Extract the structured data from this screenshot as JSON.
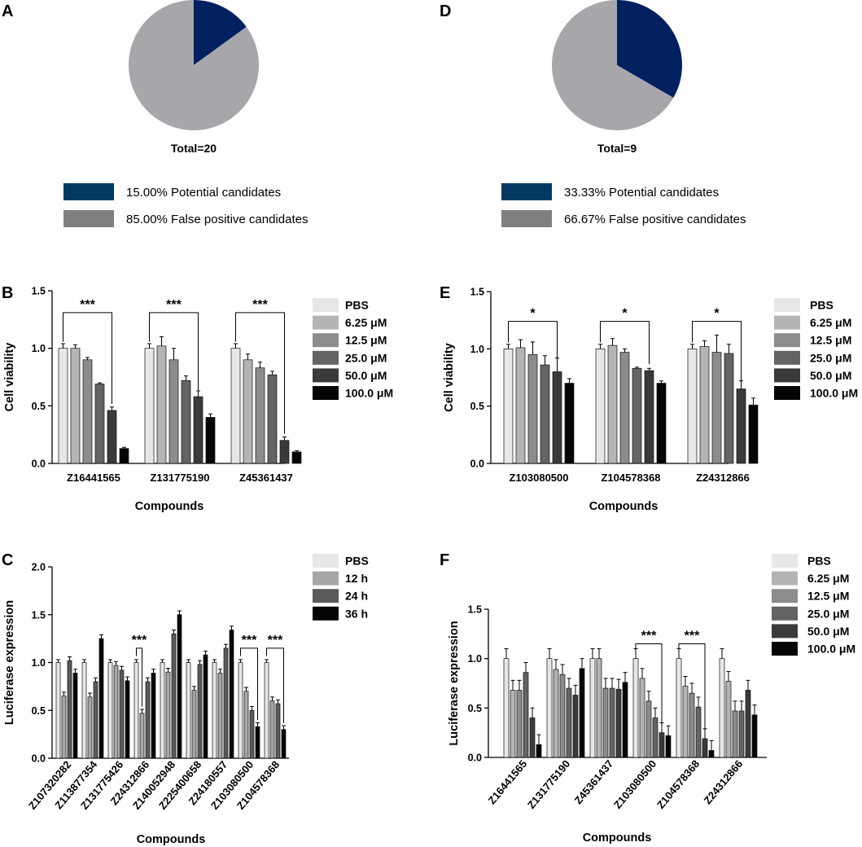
{
  "colors": {
    "potential": "#002060",
    "potential_legend": "#003a63",
    "false_pos": "#a6a6ab",
    "false_pos_legend": "#7f7f7f",
    "bar_colors_6": [
      "#e7e7e7",
      "#b4b4b4",
      "#8c8c8c",
      "#646464",
      "#3a3a3a",
      "#050505"
    ],
    "bar_colors_4": [
      "#e7e7e7",
      "#a6a6a6",
      "#5a5a5a",
      "#050505"
    ]
  },
  "chart_data": [
    {
      "panel": "A",
      "type": "pie",
      "title": "Total=20",
      "slices": [
        {
          "label": "15.00% Potential candidates",
          "value": 15.0
        },
        {
          "label": "85.00% False positive candidates",
          "value": 85.0
        }
      ]
    },
    {
      "panel": "D",
      "type": "pie",
      "title": "Total=9",
      "slices": [
        {
          "label": "33.33% Potential candidates",
          "value": 33.33
        },
        {
          "label": "66.67% False positive candidates",
          "value": 66.67
        }
      ]
    },
    {
      "panel": "B",
      "type": "bar",
      "ylabel": "Cell viability",
      "xlabel": "Compounds",
      "ylim": [
        0,
        1.5
      ],
      "yticks": [
        "0.0",
        "0.5",
        "1.0",
        "1.5"
      ],
      "categories": [
        "Z16441565",
        "Z131775190",
        "Z45361437"
      ],
      "series": [
        {
          "name": "PBS",
          "values": [
            1.0,
            1.0,
            1.0
          ],
          "errors": [
            0.04,
            0.04,
            0.04
          ]
        },
        {
          "name": "6.25 μM",
          "values": [
            1.0,
            1.02,
            0.9
          ],
          "errors": [
            0.03,
            0.08,
            0.05
          ]
        },
        {
          "name": "12.5 μM",
          "values": [
            0.9,
            0.9,
            0.83
          ],
          "errors": [
            0.02,
            0.1,
            0.05
          ]
        },
        {
          "name": "25.0 μM",
          "values": [
            0.69,
            0.72,
            0.77
          ],
          "errors": [
            0.01,
            0.04,
            0.03
          ]
        },
        {
          "name": "50.0 μM",
          "values": [
            0.46,
            0.58,
            0.2
          ],
          "errors": [
            0.03,
            0.05,
            0.03
          ]
        },
        {
          "name": "100.0 μM",
          "values": [
            0.13,
            0.4,
            0.1
          ],
          "errors": [
            0.01,
            0.03,
            0.01
          ]
        }
      ],
      "significance": [
        {
          "group": 0,
          "from": 0,
          "to": 4,
          "y": 1.31,
          "label": "***"
        },
        {
          "group": 1,
          "from": 0,
          "to": 4,
          "y": 1.31,
          "label": "***"
        },
        {
          "group": 2,
          "from": 0,
          "to": 4,
          "y": 1.31,
          "label": "***"
        }
      ]
    },
    {
      "panel": "E",
      "type": "bar",
      "ylabel": "Cell viability",
      "xlabel": "Compounds",
      "ylim": [
        0,
        1.5
      ],
      "yticks": [
        "0.0",
        "0.5",
        "1.0",
        "1.5"
      ],
      "categories": [
        "Z103080500",
        "Z104578368",
        "Z24312866"
      ],
      "series": [
        {
          "name": "PBS",
          "values": [
            1.0,
            1.0,
            1.0
          ],
          "errors": [
            0.04,
            0.04,
            0.04
          ]
        },
        {
          "name": "6.25 μM",
          "values": [
            1.01,
            1.03,
            1.02
          ],
          "errors": [
            0.07,
            0.06,
            0.05
          ]
        },
        {
          "name": "12.5 μM",
          "values": [
            0.95,
            0.97,
            0.97
          ],
          "errors": [
            0.11,
            0.03,
            0.15
          ]
        },
        {
          "name": "25.0 μM",
          "values": [
            0.86,
            0.83,
            0.96
          ],
          "errors": [
            0.08,
            0.01,
            0.08
          ]
        },
        {
          "name": "50.0 μM",
          "values": [
            0.8,
            0.81,
            0.65
          ],
          "errors": [
            0.12,
            0.02,
            0.07
          ]
        },
        {
          "name": "100.0 μM",
          "values": [
            0.7,
            0.7,
            0.51
          ],
          "errors": [
            0.04,
            0.02,
            0.06
          ]
        }
      ],
      "significance": [
        {
          "group": 0,
          "from": 0,
          "to": 4,
          "y": 1.24,
          "label": "*"
        },
        {
          "group": 1,
          "from": 0,
          "to": 4,
          "y": 1.24,
          "label": "*"
        },
        {
          "group": 2,
          "from": 0,
          "to": 4,
          "y": 1.24,
          "label": "*"
        }
      ]
    },
    {
      "panel": "C",
      "type": "bar",
      "ylabel": "Luciferase expression",
      "xlabel": "Compounds",
      "ylim": [
        0,
        2.0
      ],
      "yticks": [
        "0.0",
        "0.5",
        "1.0",
        "1.5",
        "2.0"
      ],
      "categories": [
        "Z107320282",
        "Z113877354",
        "Z131775426",
        "Z24312866",
        "Z140052948",
        "Z225400658",
        "Z24180557",
        "Z103080500",
        "Z104578368"
      ],
      "series": [
        {
          "name": "PBS",
          "values": [
            1.0,
            1.0,
            1.0,
            1.0,
            1.0,
            1.0,
            1.0,
            1.0,
            1.0
          ],
          "errors": [
            0.03,
            0.03,
            0.03,
            0.03,
            0.03,
            0.03,
            0.03,
            0.03,
            0.03
          ]
        },
        {
          "name": "12 h",
          "values": [
            0.65,
            0.64,
            0.97,
            0.47,
            0.9,
            0.71,
            0.89,
            0.7,
            0.6
          ]
        },
        {
          "name": "24 h",
          "values": [
            1.02,
            0.8,
            0.92,
            0.8,
            1.3,
            0.98,
            1.15,
            0.5,
            0.57
          ]
        },
        {
          "name": "36 h",
          "values": [
            0.89,
            1.25,
            0.81,
            0.89,
            1.5,
            1.08,
            1.34,
            0.33,
            0.3
          ]
        }
      ],
      "significance": [
        {
          "group": 3,
          "from": 0,
          "to": 1,
          "y": 1.15,
          "label": "***"
        },
        {
          "group": 7,
          "from": 0,
          "to": 3,
          "y": 1.15,
          "label": "***"
        },
        {
          "group": 8,
          "from": 0,
          "to": 3,
          "y": 1.15,
          "label": "***"
        }
      ]
    },
    {
      "panel": "F",
      "type": "bar",
      "ylabel": "Luciferase expression",
      "xlabel": "Compounds",
      "ylim": [
        0,
        1.5
      ],
      "yticks": [
        "0.0",
        "0.5",
        "1.0",
        "1.5"
      ],
      "categories": [
        "Z16441565",
        "Z131775190",
        "Z45361437",
        "Z103080500",
        "Z104578368",
        "Z24312866"
      ],
      "series": [
        {
          "name": "PBS",
          "values": [
            1.0,
            1.0,
            1.0,
            1.0,
            1.0,
            1.0
          ]
        },
        {
          "name": "6.25 μM",
          "values": [
            0.68,
            0.89,
            1.0,
            0.8,
            0.72,
            0.77
          ]
        },
        {
          "name": "12.5 μM",
          "values": [
            0.68,
            0.84,
            0.7,
            0.57,
            0.65,
            0.47
          ]
        },
        {
          "name": "25.0 μM",
          "values": [
            0.86,
            0.7,
            0.7,
            0.4,
            0.51,
            0.47
          ]
        },
        {
          "name": "50.0 μM",
          "values": [
            0.4,
            0.63,
            0.69,
            0.25,
            0.19,
            0.68
          ]
        },
        {
          "name": "100.0 μM",
          "values": [
            0.13,
            0.9,
            0.76,
            0.22,
            0.07,
            0.43
          ]
        }
      ],
      "significance": [
        {
          "group": 3,
          "from": 0,
          "to": 4,
          "y": 1.15,
          "label": "***"
        },
        {
          "group": 4,
          "from": 0,
          "to": 4,
          "y": 1.15,
          "label": "***"
        }
      ]
    }
  ]
}
